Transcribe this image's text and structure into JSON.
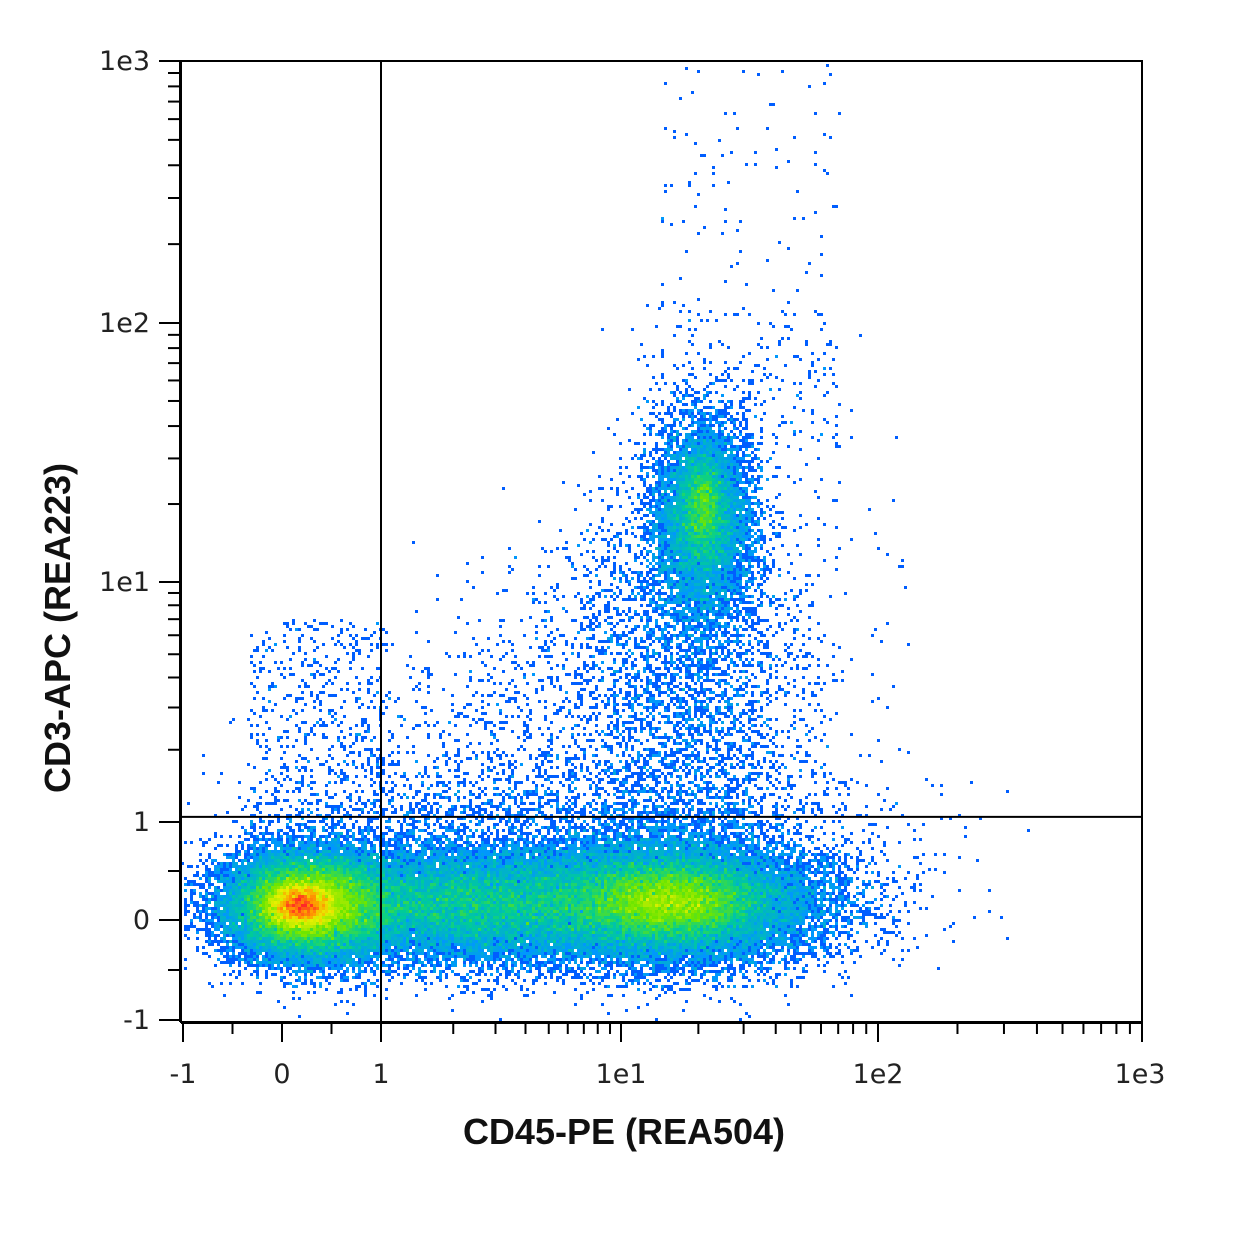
{
  "chart_data": {
    "type": "scatter",
    "subtype": "density-dot-plot",
    "xlabel": "CD45-PE (REA504)",
    "ylabel": "CD3-APC (REA223)",
    "x_scale": "biexponential",
    "y_scale": "biexponential",
    "xlim": [
      -1,
      1000
    ],
    "ylim": [
      -1,
      1000
    ],
    "x_ticks": [
      {
        "value": -1,
        "label": "-1"
      },
      {
        "value": 0,
        "label": "0"
      },
      {
        "value": 1,
        "label": "1"
      },
      {
        "value": 10,
        "label": "1e1"
      },
      {
        "value": 100,
        "label": "1e2"
      },
      {
        "value": 1000,
        "label": "1e3"
      }
    ],
    "y_ticks": [
      {
        "value": -1,
        "label": "-1"
      },
      {
        "value": 0,
        "label": "0"
      },
      {
        "value": 1,
        "label": "1"
      },
      {
        "value": 10,
        "label": "1e1"
      },
      {
        "value": 100,
        "label": "1e2"
      },
      {
        "value": 1000,
        "label": "1e3"
      }
    ],
    "quadrant_gate": {
      "x": 1,
      "y": 1.05
    },
    "populations": [
      {
        "center": [
          0.3,
          0.15
        ],
        "spread": "dense low cluster",
        "peak_density": "high"
      },
      {
        "center": [
          15,
          0.15
        ],
        "spread": "broad CD45+ CD3- cluster",
        "peak_density": "medium"
      },
      {
        "center": [
          20,
          18
        ],
        "spread": "CD45+ CD3+ cluster",
        "peak_density": "medium"
      }
    ],
    "density_colors": [
      "#0000ff",
      "#00a0ff",
      "#00d28c",
      "#6ee600",
      "#e6f000",
      "#ff9600",
      "#ff2828"
    ],
    "grid": false,
    "legend": "none"
  }
}
